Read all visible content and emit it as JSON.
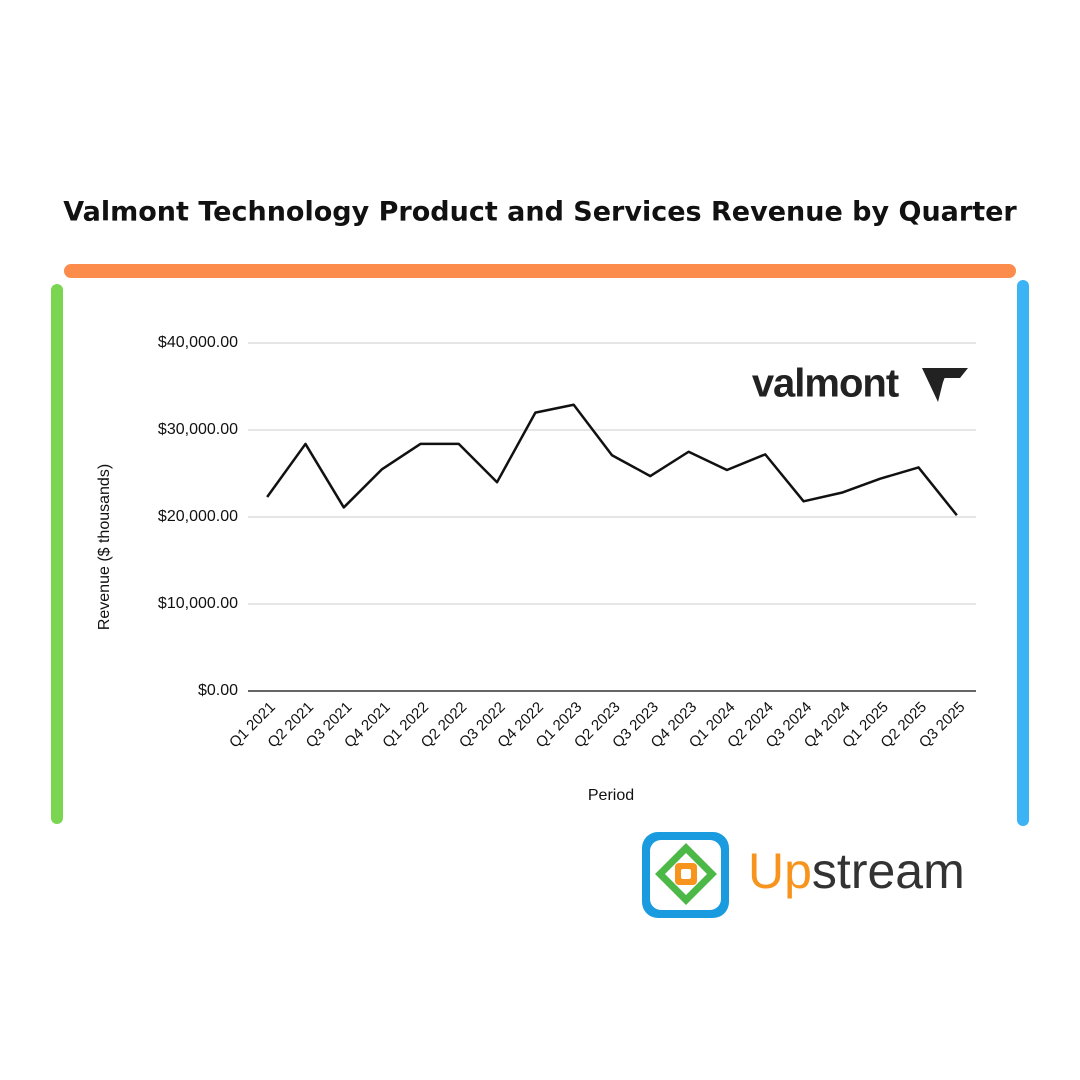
{
  "chart_data": {
    "type": "line",
    "title": "Valmont Technology Product and Services Revenue by Quarter",
    "x_label": "Period",
    "y_label": "Revenue ($ thousands)",
    "categories": [
      "Q1 2021",
      "Q2 2021",
      "Q3 2021",
      "Q4 2021",
      "Q1 2022",
      "Q2 2022",
      "Q3 2022",
      "Q4 2022",
      "Q1 2023",
      "Q2 2023",
      "Q3 2023",
      "Q4 2023",
      "Q1 2024",
      "Q2 2024",
      "Q3 2024",
      "Q4 2024",
      "Q1 2025",
      "Q2 2025",
      "Q3 2025"
    ],
    "values": [
      22300,
      28400,
      21100,
      25500,
      28400,
      28400,
      24000,
      32000,
      32900,
      27100,
      24700,
      27500,
      25400,
      27200,
      21800,
      22800,
      24400,
      25700,
      20200
    ],
    "color": "#111111",
    "ylim": [
      0,
      40000
    ],
    "yticks": [
      {
        "value": 0,
        "label": "$0.00"
      },
      {
        "value": 10000,
        "label": "$10,000.00"
      },
      {
        "value": 20000,
        "label": "$20,000.00"
      },
      {
        "value": 30000,
        "label": "$30,000.00"
      },
      {
        "value": 40000,
        "label": "$40,000.00"
      }
    ],
    "grid": true
  },
  "valmont_logo": {
    "text": "valmont"
  },
  "upstream_logo": {
    "part_1": "Up",
    "part_2": "stream"
  }
}
